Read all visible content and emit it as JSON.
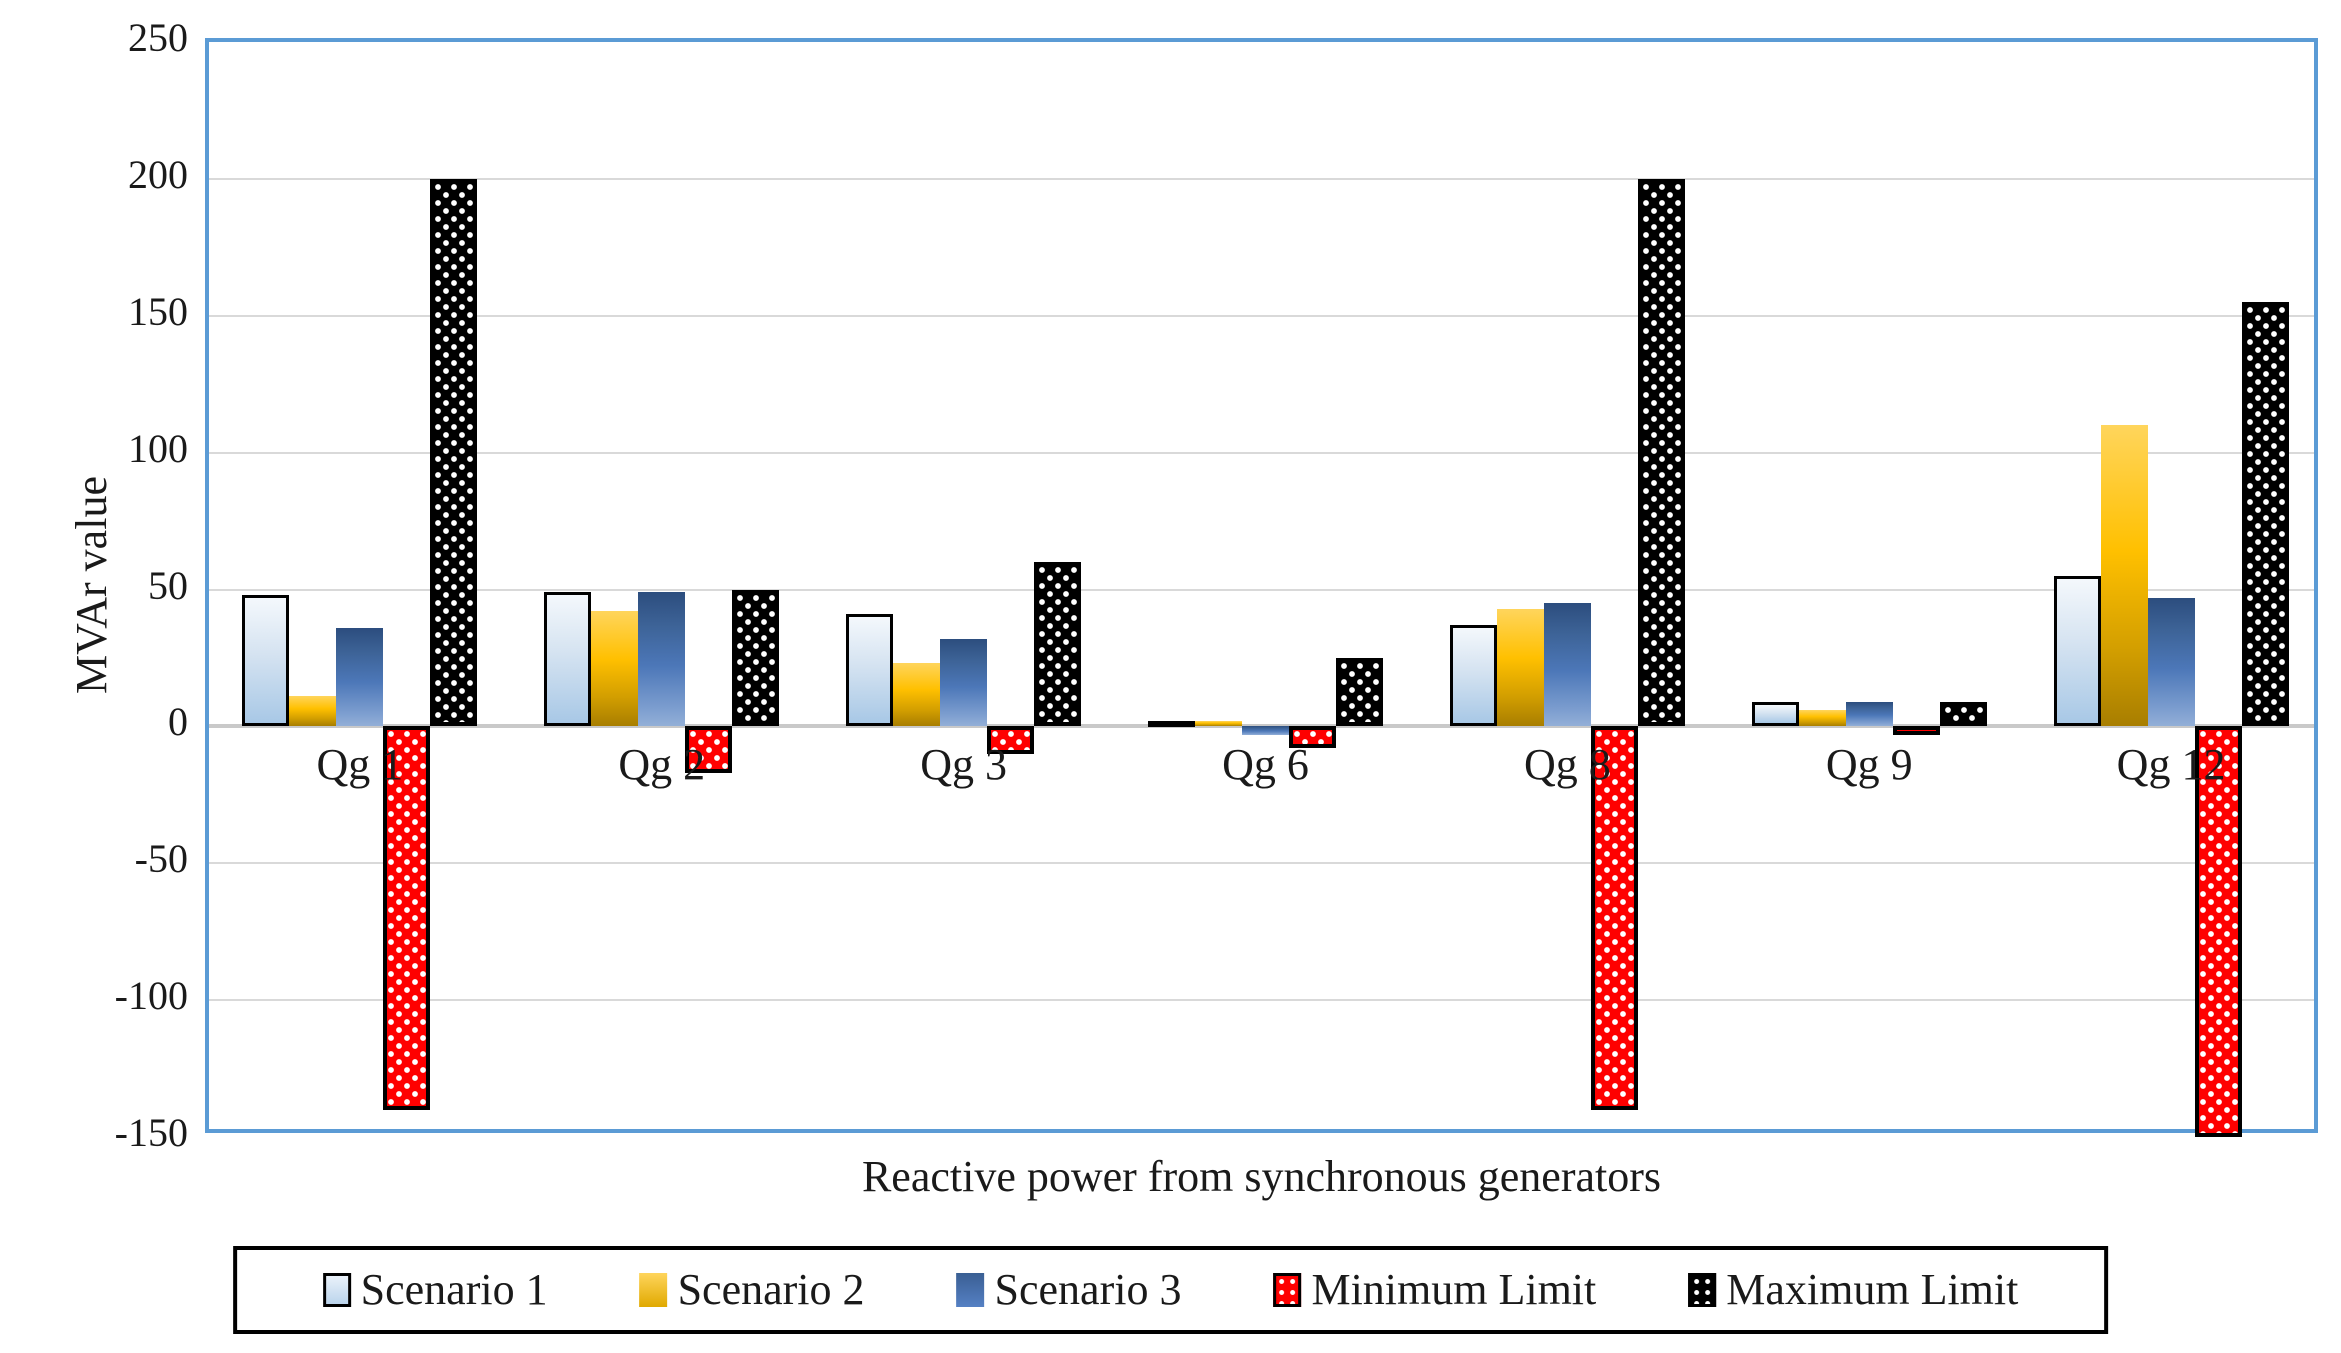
{
  "y_axis": {
    "title": "MVAr value",
    "ticks": [
      250,
      200,
      150,
      100,
      50,
      0,
      -50,
      -100,
      -150
    ]
  },
  "x_axis": {
    "title": "Reactive power from synchronous generators"
  },
  "legend": {
    "items": [
      {
        "label": "Scenario 1",
        "key": "s1"
      },
      {
        "label": "Scenario 2",
        "key": "s2"
      },
      {
        "label": "Scenario 3",
        "key": "s3"
      },
      {
        "label": "Minimum Limit",
        "key": "min"
      },
      {
        "label": "Maximum Limit",
        "key": "max"
      }
    ]
  },
  "colors": {
    "scenario1_fill": "#BDD7EE",
    "scenario2_fill": "#FFC000",
    "scenario3_fill": "#4C77B8",
    "minimum_fill": "#FE0000",
    "maximum_fill": "#000000",
    "plot_border": "#5B9BD5",
    "gridline": "#D9D9D9"
  },
  "chart_data": {
    "type": "bar",
    "title": "",
    "xlabel": "Reactive power from synchronous generators",
    "ylabel": "MVAr value",
    "ylim": [
      -150,
      250
    ],
    "grid_step": 50,
    "grid": true,
    "legend_position": "bottom",
    "categories": [
      "Qg 1",
      "Qg 2",
      "Qg 3",
      "Qg 6",
      "Qg 8",
      "Qg 9",
      "Qg 12"
    ],
    "series": [
      {
        "name": "Scenario 1",
        "key": "s1",
        "values": [
          48,
          49,
          41,
          2,
          37,
          9,
          55
        ]
      },
      {
        "name": "Scenario 2",
        "key": "s2",
        "values": [
          11,
          42,
          23,
          2,
          43,
          6,
          110
        ]
      },
      {
        "name": "Scenario 3",
        "key": "s3",
        "values": [
          36,
          49,
          32,
          -3,
          45,
          9,
          47
        ]
      },
      {
        "name": "Minimum Limit",
        "key": "min",
        "values": [
          -140,
          -17,
          -10,
          -8,
          -140,
          -3,
          -150
        ]
      },
      {
        "name": "Maximum Limit",
        "key": "max",
        "values": [
          200,
          50,
          60,
          25,
          200,
          9,
          155
        ]
      }
    ]
  }
}
